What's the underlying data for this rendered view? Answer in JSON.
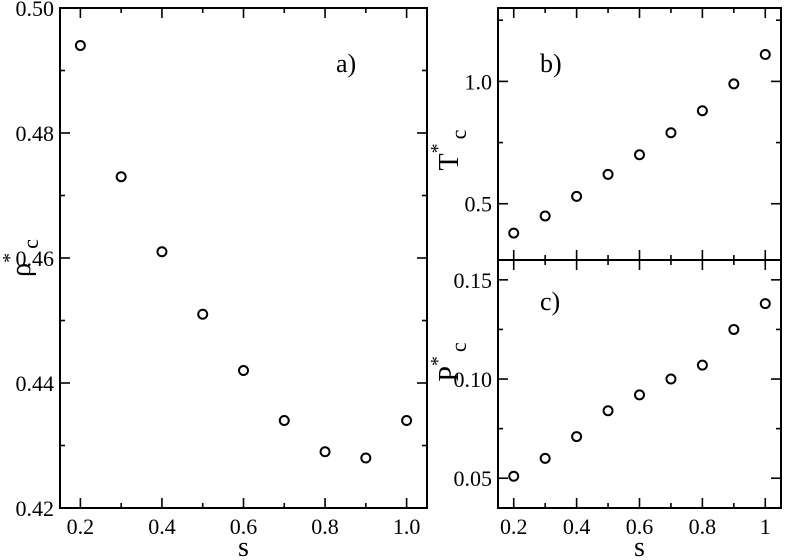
{
  "chart_data": [
    {
      "type": "scatter",
      "panel": "a)",
      "xlabel": "s",
      "ylabel": "ρ*c",
      "ylabel_main": "ρ",
      "ylabel_sup": "*",
      "ylabel_sub": "c",
      "xlim": [
        0.15,
        1.05
      ],
      "ylim": [
        0.42,
        0.5
      ],
      "xticks": [
        0.2,
        0.4,
        0.6,
        0.8,
        1.0
      ],
      "xtick_labels": [
        "0.2",
        "0.4",
        "0.6",
        "0.8",
        "1.0"
      ],
      "yticks": [
        0.42,
        0.44,
        0.46,
        0.48,
        0.5
      ],
      "ytick_labels": [
        "0.42",
        "0.44",
        "0.46",
        "0.48",
        "0.50"
      ],
      "series": [
        {
          "x": [
            0.2,
            0.3,
            0.4,
            0.5,
            0.6,
            0.7,
            0.8,
            0.9,
            1.0
          ],
          "y": [
            0.494,
            0.473,
            0.461,
            0.451,
            0.442,
            0.434,
            0.429,
            0.428,
            0.434
          ]
        }
      ]
    },
    {
      "type": "scatter",
      "panel": "b)",
      "xlabel": "",
      "ylabel": "T*c",
      "ylabel_main": "T",
      "ylabel_sup": "*",
      "ylabel_sub": "c",
      "xlim": [
        0.15,
        1.05
      ],
      "ylim": [
        0.27,
        1.3
      ],
      "yticks": [
        0.5,
        1.0
      ],
      "ytick_labels": [
        "0.5",
        "1.0"
      ],
      "series": [
        {
          "x": [
            0.2,
            0.3,
            0.4,
            0.5,
            0.6,
            0.7,
            0.8,
            0.9,
            1.0
          ],
          "y": [
            0.38,
            0.45,
            0.53,
            0.62,
            0.7,
            0.79,
            0.88,
            0.99,
            1.11
          ]
        }
      ]
    },
    {
      "type": "scatter",
      "panel": "c)",
      "xlabel": "s",
      "ylabel": "P*c",
      "ylabel_main": "P",
      "ylabel_sup": "*",
      "ylabel_sub": "c",
      "xlim": [
        0.15,
        1.05
      ],
      "ylim": [
        0.035,
        0.16
      ],
      "xticks": [
        0.2,
        0.4,
        0.6,
        0.8,
        1.0
      ],
      "xtick_labels": [
        "0.2",
        "0.4",
        "0.6",
        "0.8",
        "1"
      ],
      "yticks": [
        0.05,
        0.1,
        0.15
      ],
      "ytick_labels": [
        "0.05",
        "0.10",
        "0.15"
      ],
      "series": [
        {
          "x": [
            0.2,
            0.3,
            0.4,
            0.5,
            0.6,
            0.7,
            0.8,
            0.9,
            1.0
          ],
          "y": [
            0.051,
            0.06,
            0.071,
            0.084,
            0.092,
            0.1,
            0.107,
            0.125,
            0.138
          ]
        }
      ]
    }
  ]
}
